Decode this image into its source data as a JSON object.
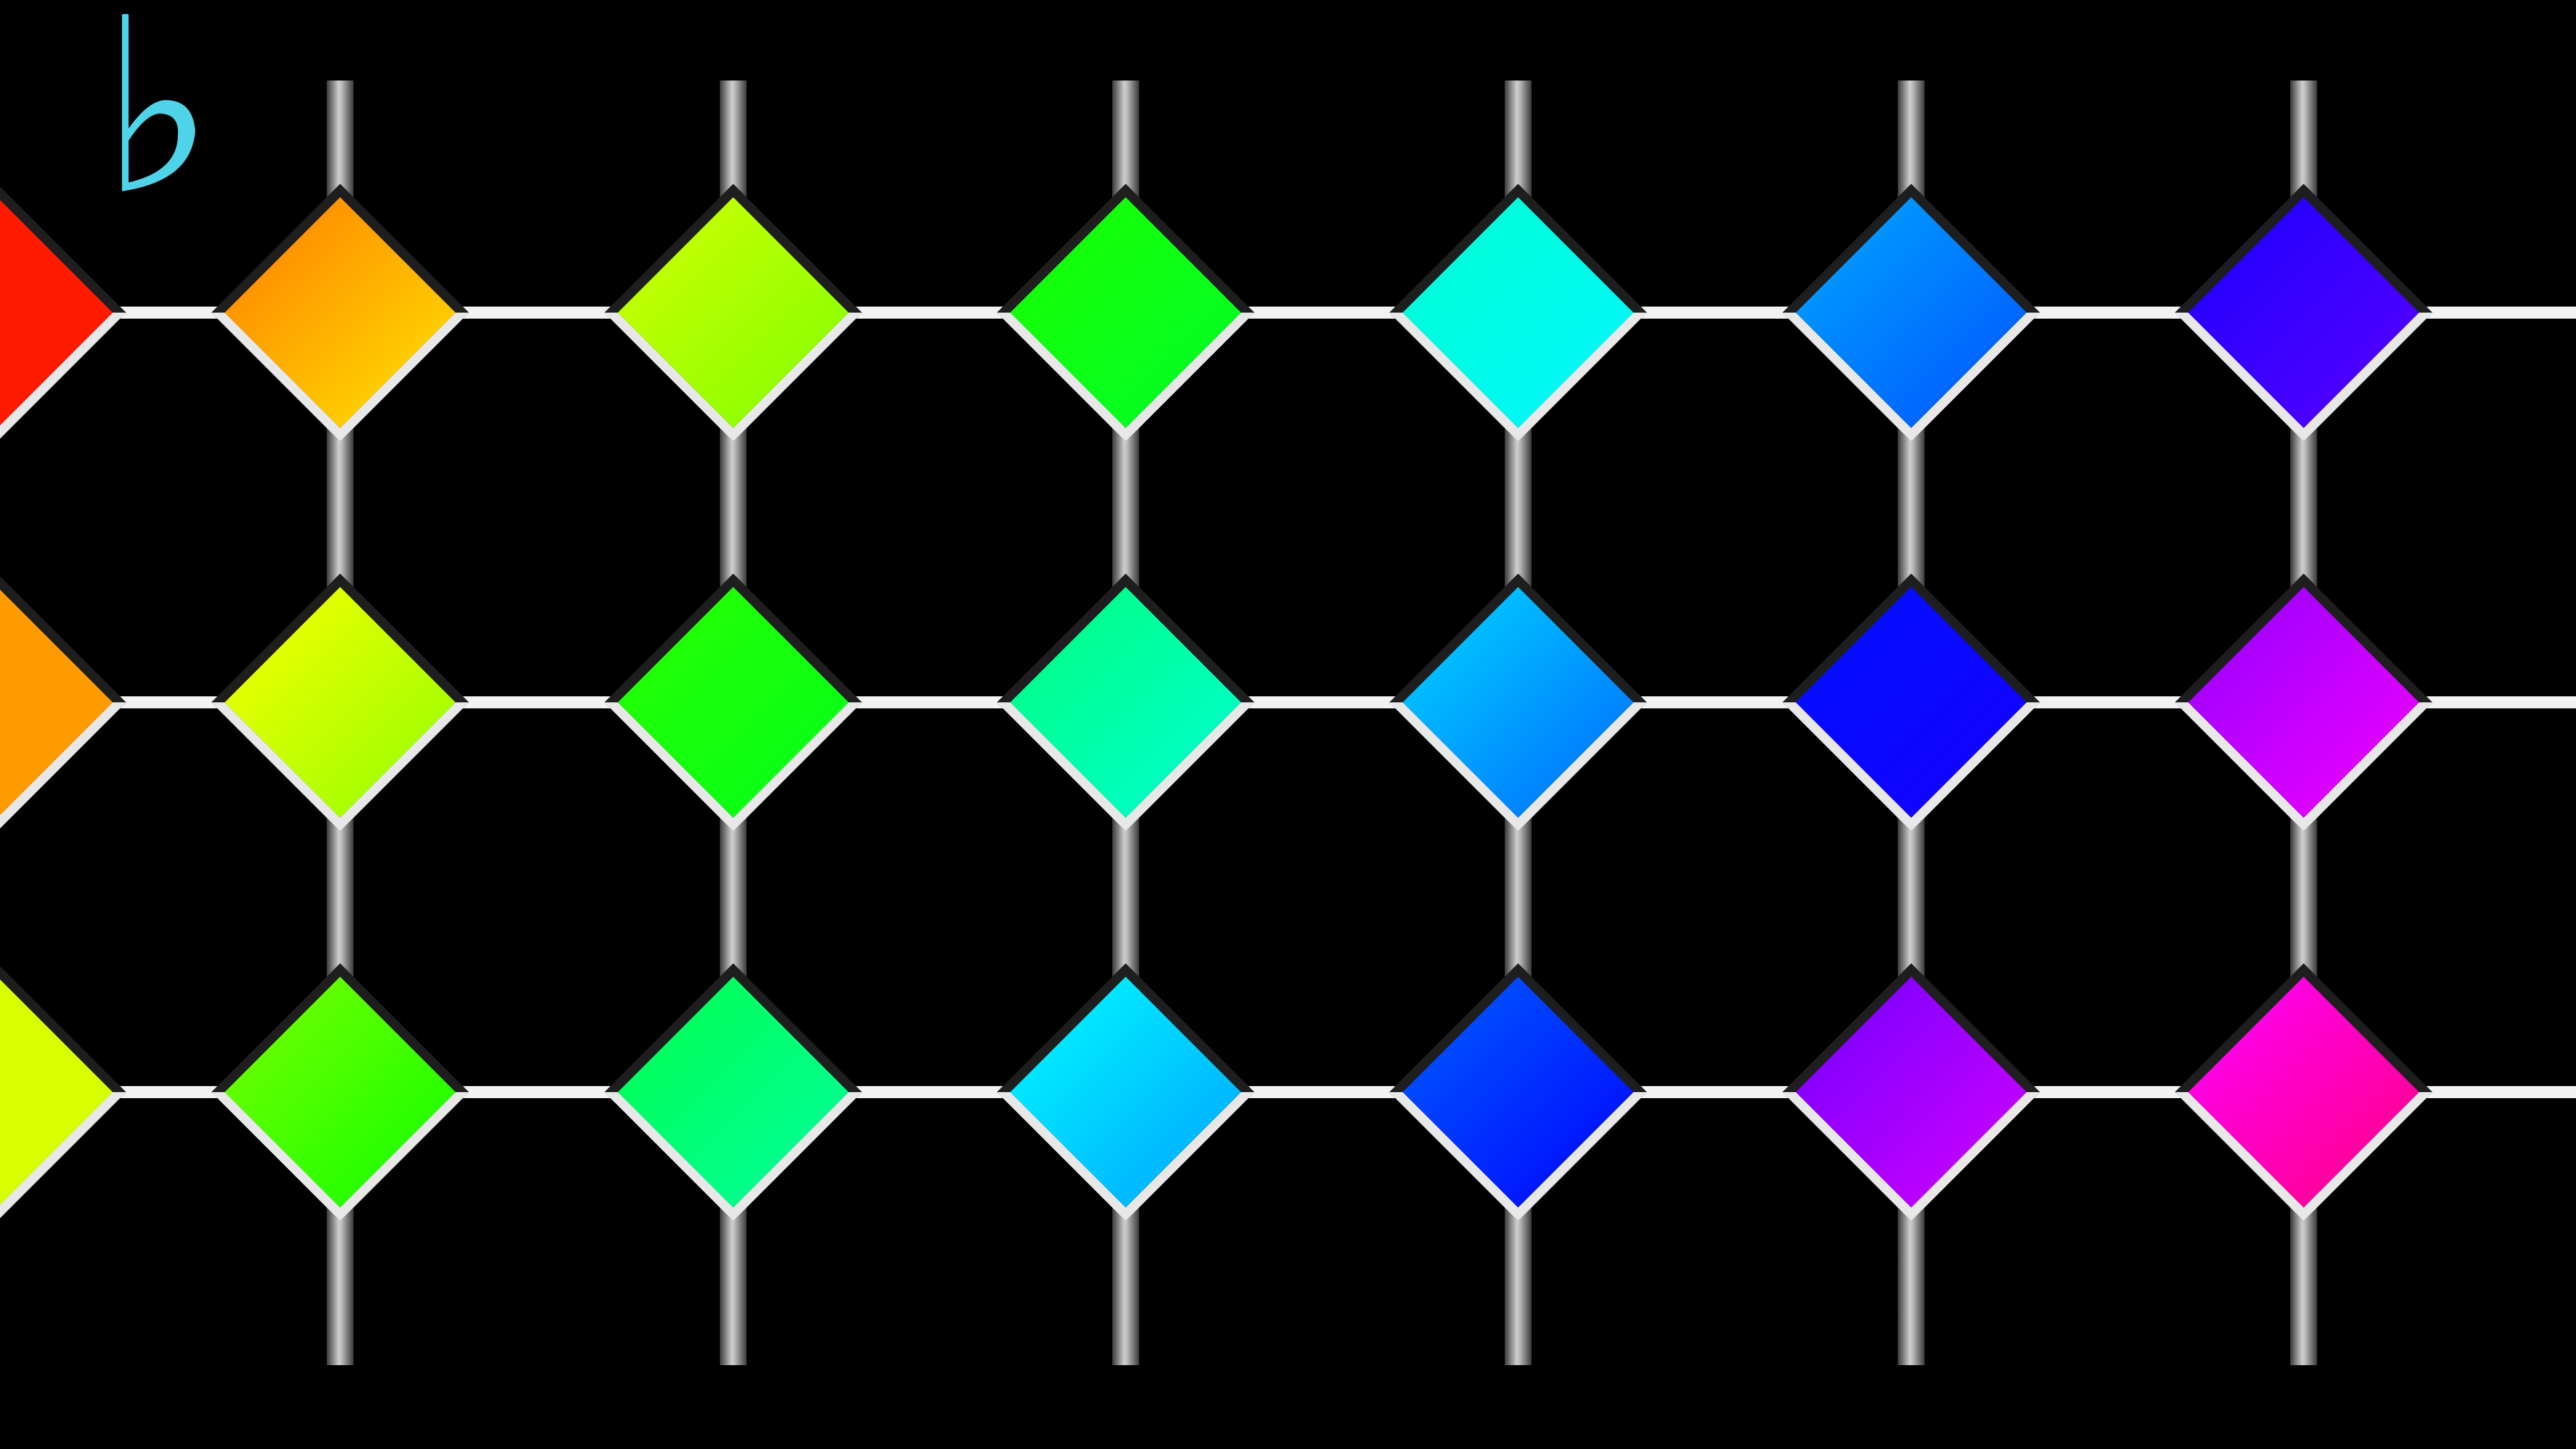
{
  "accidental": {
    "symbol": "♭"
  },
  "grid": {
    "rows": [
      {
        "edge_tile": "#ff1a00",
        "tiles": [
          {
            "from": "#ff7a00",
            "to": "#ffe600"
          },
          {
            "from": "#d4ff00",
            "to": "#7dff00"
          },
          {
            "from": "#1aff00",
            "to": "#00ff2a"
          },
          {
            "from": "#00ffd0",
            "to": "#00f7ff"
          },
          {
            "from": "#00a8ff",
            "to": "#0052ff"
          },
          {
            "from": "#1a00ff",
            "to": "#5a00ff"
          }
        ]
      },
      {
        "edge_tile": "#ff9a00",
        "tiles": [
          {
            "from": "#fbff00",
            "to": "#90ff00"
          },
          {
            "from": "#2aff00",
            "to": "#00ff1a"
          },
          {
            "from": "#00ff7a",
            "to": "#00ffd5"
          },
          {
            "from": "#00d9ff",
            "to": "#0066ff"
          },
          {
            "from": "#0010ff",
            "to": "#1600ff"
          },
          {
            "from": "#9000ff",
            "to": "#f500ff"
          }
        ]
      },
      {
        "edge_tile": "#d8ff00",
        "tiles": [
          {
            "from": "#7dff00",
            "to": "#0cff00"
          },
          {
            "from": "#00ff4a",
            "to": "#00ffa0"
          },
          {
            "from": "#00ffff",
            "to": "#00a0ff"
          },
          {
            "from": "#0060ff",
            "to": "#0000ff"
          },
          {
            "from": "#7000ff",
            "to": "#d300ff"
          },
          {
            "from": "#ff00ff",
            "to": "#ff0080"
          }
        ]
      }
    ]
  },
  "colors": {
    "background": "#000000",
    "rail_light": "#f2f2f2",
    "rail_dark": "#2a2a2a",
    "accent": "#4fd3e8"
  }
}
